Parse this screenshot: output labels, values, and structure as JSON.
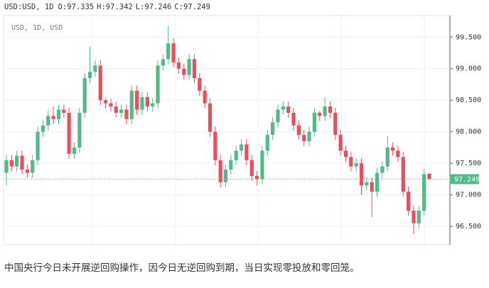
{
  "chart_data": {
    "type": "candlestick",
    "title": "USD:USD, 1D",
    "ohlc_labels": [
      "O:",
      "H:",
      "L:",
      "C:"
    ],
    "subtitle": "USD, 1D, USD",
    "caption": "中国央行今日未开展逆回购操作，因今日无逆回购到期，当日实现零投放和零回笼。",
    "up_color": "#53b987",
    "down_color": "#eb4d5c",
    "grid": true,
    "ylim": [
      96.21,
      99.84
    ],
    "yticks": [
      {
        "value": 96.5,
        "label": "96.500"
      },
      {
        "value": 97,
        "label": "97.000"
      },
      {
        "value": 97.5,
        "label": "97.500"
      },
      {
        "value": 98,
        "label": "98.000"
      },
      {
        "value": 98.5,
        "label": "98.500"
      },
      {
        "value": 99,
        "label": "99.000"
      },
      {
        "value": 99.5,
        "label": "99.500"
      }
    ],
    "open": [
      97.35,
      97.55,
      97.45,
      97.62,
      97.4,
      97.35,
      97.55,
      98.0,
      98.1,
      98.25,
      98.2,
      98.35,
      98.3,
      97.65,
      97.75,
      98.3,
      98.85,
      98.95,
      99.05,
      98.5,
      98.45,
      98.4,
      98.3,
      98.35,
      98.2,
      98.65,
      98.35,
      98.55,
      98.4,
      98.45,
      99.05,
      99.15,
      99.4,
      99.1,
      99.0,
      98.9,
      99.15,
      98.85,
      98.65,
      98.45,
      98.0,
      97.55,
      97.2,
      97.4,
      97.55,
      97.7,
      97.8,
      97.55,
      97.3,
      97.25,
      97.7,
      97.95,
      98.15,
      98.35,
      98.4,
      98.3,
      98.1,
      97.95,
      97.85,
      98.0,
      98.3,
      98.25,
      98.4,
      98.3,
      97.95,
      97.7,
      97.6,
      97.45,
      97.5,
      97.15,
      97.2,
      97.05,
      97.35,
      97.45,
      97.75,
      97.7,
      97.6,
      97.05,
      96.75,
      96.55,
      96.75,
      97.335
    ],
    "high": [
      97.63,
      97.63,
      97.7,
      97.7,
      97.48,
      97.63,
      98.08,
      98.18,
      98.33,
      98.4,
      98.43,
      98.43,
      98.38,
      97.83,
      98.38,
      98.93,
      99.35,
      99.13,
      99.13,
      98.53,
      98.53,
      98.48,
      98.43,
      98.43,
      98.73,
      98.73,
      98.63,
      98.63,
      98.53,
      99.13,
      99.23,
      99.68,
      99.48,
      99.18,
      99.08,
      99.23,
      99.23,
      98.93,
      98.73,
      98.53,
      98.08,
      97.63,
      97.48,
      97.63,
      97.78,
      97.88,
      97.88,
      97.63,
      97.38,
      97.78,
      98.03,
      98.23,
      98.43,
      98.48,
      98.48,
      98.38,
      98.18,
      98.03,
      98.08,
      98.38,
      98.33,
      98.55,
      98.48,
      98.38,
      98.03,
      97.78,
      97.68,
      97.58,
      97.58,
      97.28,
      97.28,
      97.43,
      97.53,
      97.93,
      97.83,
      97.78,
      97.68,
      97.13,
      96.83,
      96.83,
      97.41,
      97.342
    ],
    "low": [
      97.15,
      97.37,
      97.37,
      97.32,
      97.27,
      97.27,
      97.47,
      97.92,
      98.02,
      98.12,
      98.12,
      98.22,
      97.57,
      97.57,
      97.67,
      98.22,
      98.77,
      98.87,
      98.42,
      98.37,
      98.32,
      98.22,
      98.22,
      98.12,
      98.12,
      98.27,
      98.27,
      98.32,
      98.32,
      98.37,
      98.97,
      99.07,
      99.02,
      98.92,
      98.82,
      98.82,
      98.77,
      98.57,
      98.37,
      97.92,
      97.47,
      97.12,
      97.12,
      97.32,
      97.47,
      97.62,
      97.47,
      97.22,
      97.15,
      97.17,
      97.62,
      97.87,
      98.07,
      98.27,
      98.22,
      98.02,
      97.87,
      97.77,
      97.77,
      97.92,
      98.17,
      98.17,
      98.22,
      97.87,
      97.62,
      97.52,
      97.37,
      97.37,
      97.0,
      97.07,
      96.65,
      96.97,
      97.27,
      97.37,
      97.62,
      97.52,
      96.97,
      96.67,
      96.38,
      96.47,
      96.67,
      97.246
    ],
    "close": [
      97.55,
      97.45,
      97.62,
      97.4,
      97.35,
      97.55,
      98.0,
      98.1,
      98.25,
      98.2,
      98.35,
      98.3,
      97.65,
      97.75,
      98.3,
      98.85,
      98.95,
      99.05,
      98.5,
      98.45,
      98.4,
      98.3,
      98.35,
      98.2,
      98.65,
      98.35,
      98.55,
      98.4,
      98.45,
      99.05,
      99.15,
      99.4,
      99.1,
      99.0,
      98.9,
      99.15,
      98.85,
      98.65,
      98.45,
      98.0,
      97.55,
      97.2,
      97.4,
      97.55,
      97.7,
      97.8,
      97.55,
      97.3,
      97.25,
      97.7,
      97.95,
      98.15,
      98.35,
      98.4,
      98.3,
      98.1,
      97.95,
      97.85,
      98.0,
      98.3,
      98.25,
      98.4,
      98.3,
      97.95,
      97.7,
      97.6,
      97.45,
      97.5,
      97.15,
      97.2,
      97.05,
      97.35,
      97.45,
      97.75,
      97.7,
      97.6,
      97.05,
      96.75,
      96.55,
      96.75,
      97.33,
      97.249
    ]
  }
}
